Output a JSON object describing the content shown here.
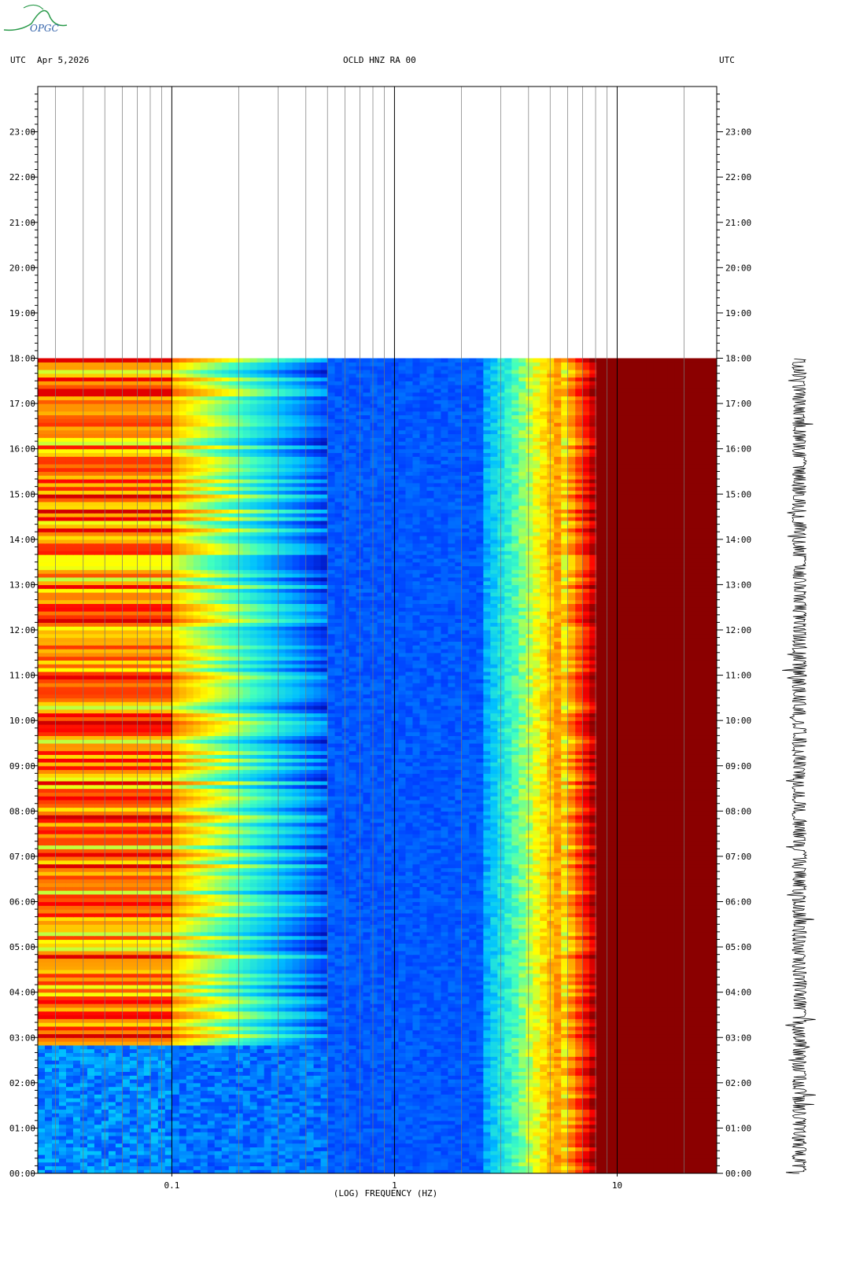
{
  "logo_text": "OPGC",
  "header": {
    "left_tz": "UTC",
    "date": "Apr 5,2026",
    "station": "OCLD HNZ RA 00",
    "right_tz": "UTC"
  },
  "chart_data": {
    "type": "heatmap",
    "title": "OCLD HNZ RA 00",
    "xlabel": "(LOG) FREQUENCY (HZ)",
    "ylabel": "",
    "x_scale": "log",
    "xlim": [
      0.025,
      28
    ],
    "x_ticks": [
      {
        "value": 0.1,
        "label": "0.1"
      },
      {
        "value": 1,
        "label": "1"
      },
      {
        "value": 10,
        "label": "10"
      }
    ],
    "ylim_hours": [
      0,
      24
    ],
    "y_ticks_left": [
      "00:00",
      "01:00",
      "02:00",
      "03:00",
      "04:00",
      "05:00",
      "06:00",
      "07:00",
      "08:00",
      "09:00",
      "10:00",
      "11:00",
      "12:00",
      "13:00",
      "14:00",
      "15:00",
      "16:00",
      "17:00",
      "18:00",
      "19:00",
      "20:00",
      "21:00",
      "22:00",
      "23:00"
    ],
    "y_ticks_right": [
      "00:00",
      "01:00",
      "02:00",
      "03:00",
      "04:00",
      "05:00",
      "06:00",
      "07:00",
      "08:00",
      "09:00",
      "10:00",
      "11:00",
      "12:00",
      "13:00",
      "14:00",
      "15:00",
      "16:00",
      "17:00",
      "18:00",
      "19:00",
      "20:00",
      "21:00",
      "22:00",
      "23:00"
    ],
    "data_until_hour": 18,
    "colormap": [
      "#0000a0",
      "#0040ff",
      "#00c0ff",
      "#40ffc0",
      "#ffff00",
      "#ff8000",
      "#ff0000",
      "#8b0000"
    ],
    "gridlines": "decade gridlines at 0.1, 1, 10 Hz with minor gridlines at integer multiples",
    "seismogram_trace": "continuous trace beside the spectrogram from 00:00 to 18:00"
  }
}
